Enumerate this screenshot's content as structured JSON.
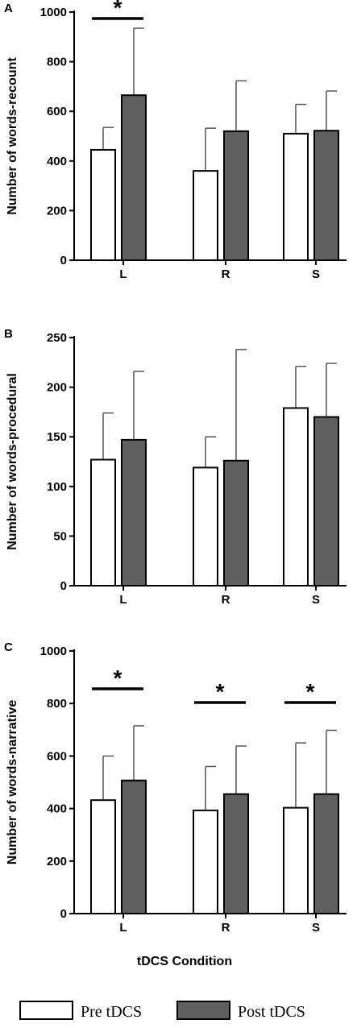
{
  "chart_data": [
    {
      "type": "bar",
      "panel": "A",
      "categories": [
        "L",
        "R",
        "S"
      ],
      "series": [
        {
          "name": "Pre tDCS",
          "values": [
            445,
            360,
            510
          ],
          "errors": [
            90,
            172,
            118
          ],
          "color": "#ffffff"
        },
        {
          "name": "Post tDCS",
          "values": [
            665,
            520,
            522
          ],
          "errors": [
            270,
            203,
            160
          ],
          "color": "#5f5f5f"
        }
      ],
      "ylabel": "Number of words-recount",
      "ylim": [
        0,
        1000
      ],
      "yticks": [
        0,
        200,
        400,
        600,
        800,
        1000
      ],
      "significance": [
        {
          "category": "L",
          "label": "*"
        }
      ]
    },
    {
      "type": "bar",
      "panel": "B",
      "categories": [
        "L",
        "R",
        "S"
      ],
      "series": [
        {
          "name": "Pre tDCS",
          "values": [
            127,
            119,
            179
          ],
          "errors": [
            47,
            31,
            42
          ],
          "color": "#ffffff"
        },
        {
          "name": "Post tDCS",
          "values": [
            147,
            126,
            170
          ],
          "errors": [
            69,
            112,
            54
          ],
          "color": "#5f5f5f"
        }
      ],
      "ylabel": "Number of words-procedural",
      "ylim": [
        0,
        250
      ],
      "yticks": [
        0,
        50,
        100,
        150,
        200,
        250
      ],
      "significance": []
    },
    {
      "type": "bar",
      "panel": "C",
      "categories": [
        "L",
        "R",
        "S"
      ],
      "series": [
        {
          "name": "Pre tDCS",
          "values": [
            432,
            393,
            403
          ],
          "errors": [
            168,
            167,
            247
          ],
          "color": "#ffffff"
        },
        {
          "name": "Post tDCS",
          "values": [
            507,
            455,
            455
          ],
          "errors": [
            208,
            183,
            243
          ],
          "color": "#5f5f5f"
        }
      ],
      "ylabel": "Number of words-narrative",
      "ylim": [
        0,
        1000
      ],
      "yticks": [
        0,
        200,
        400,
        600,
        800,
        1000
      ],
      "significance": [
        {
          "category": "L",
          "label": "*"
        },
        {
          "category": "R",
          "label": "*"
        },
        {
          "category": "S",
          "label": "*"
        }
      ]
    }
  ],
  "xlabel": "tDCS Condition",
  "legend": [
    {
      "label": "Pre tDCS",
      "color": "#ffffff"
    },
    {
      "label": "Post tDCS",
      "color": "#5f5f5f"
    }
  ]
}
